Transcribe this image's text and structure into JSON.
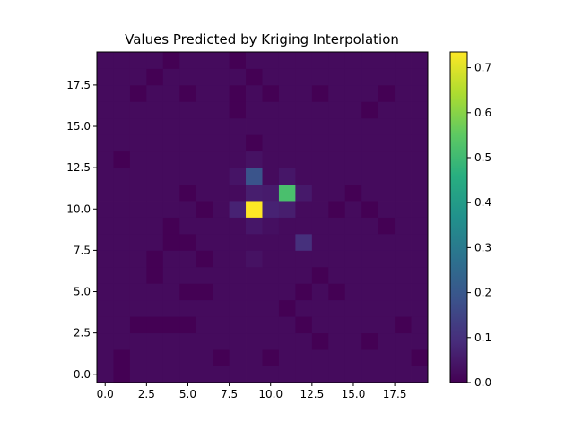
{
  "chart_data": {
    "type": "heatmap",
    "title": "Values Predicted by Kriging Interpolation",
    "xlabel": "",
    "ylabel": "",
    "origin": "lower",
    "nx": 20,
    "ny": 20,
    "xlim": [
      -0.5,
      19.5
    ],
    "ylim": [
      -0.5,
      19.5
    ],
    "x_ticks": [
      0.0,
      2.5,
      5.0,
      7.5,
      10.0,
      12.5,
      15.0,
      17.5
    ],
    "x_tick_labels": [
      "0.0",
      "2.5",
      "5.0",
      "7.5",
      "10.0",
      "12.5",
      "15.0",
      "17.5"
    ],
    "y_ticks": [
      0.0,
      2.5,
      5.0,
      7.5,
      10.0,
      12.5,
      15.0,
      17.5
    ],
    "y_tick_labels": [
      "0.0",
      "2.5",
      "5.0",
      "7.5",
      "10.0",
      "12.5",
      "15.0",
      "17.5"
    ],
    "colormap": "viridis",
    "background_value": 0.02,
    "colorbar": {
      "vmin": 0.0,
      "vmax": 0.735,
      "ticks": [
        0.0,
        0.1,
        0.2,
        0.3,
        0.4,
        0.5,
        0.6,
        0.7
      ],
      "tick_labels": [
        "0.0",
        "0.1",
        "0.2",
        "0.3",
        "0.4",
        "0.5",
        "0.6",
        "0.7"
      ]
    },
    "cells": [
      [
        9,
        10,
        0.735
      ],
      [
        11,
        11,
        0.52
      ],
      [
        9,
        12,
        0.19
      ],
      [
        12,
        8,
        0.1
      ],
      [
        8,
        10,
        0.07
      ],
      [
        10,
        10,
        0.07
      ],
      [
        10,
        11,
        0.055
      ],
      [
        11,
        10,
        0.06
      ],
      [
        9,
        11,
        0.06
      ],
      [
        12,
        11,
        0.05
      ],
      [
        11,
        12,
        0.045
      ],
      [
        8,
        12,
        0.04
      ],
      [
        9,
        9,
        0.045
      ],
      [
        9,
        13,
        0.035
      ],
      [
        9,
        7,
        0.035
      ],
      [
        10,
        9,
        0.03
      ],
      [
        1,
        0,
        0.0
      ],
      [
        1,
        1,
        0.0
      ],
      [
        7,
        1,
        0.0
      ],
      [
        10,
        1,
        0.0
      ],
      [
        19,
        1,
        0.0
      ],
      [
        13,
        2,
        0.0
      ],
      [
        16,
        2,
        0.0
      ],
      [
        2,
        3,
        0.0
      ],
      [
        3,
        3,
        0.0
      ],
      [
        4,
        3,
        0.0
      ],
      [
        5,
        3,
        0.0
      ],
      [
        12,
        3,
        0.0
      ],
      [
        18,
        3,
        0.0
      ],
      [
        11,
        4,
        0.0
      ],
      [
        5,
        5,
        0.0
      ],
      [
        6,
        5,
        0.0
      ],
      [
        12,
        5,
        0.0
      ],
      [
        14,
        5,
        0.0
      ],
      [
        3,
        6,
        0.0
      ],
      [
        13,
        6,
        0.0
      ],
      [
        3,
        7,
        0.0
      ],
      [
        6,
        7,
        0.0
      ],
      [
        4,
        8,
        0.0
      ],
      [
        5,
        8,
        0.0
      ],
      [
        4,
        9,
        0.0
      ],
      [
        17,
        9,
        0.0
      ],
      [
        6,
        10,
        0.0
      ],
      [
        14,
        10,
        0.0
      ],
      [
        16,
        10,
        0.0
      ],
      [
        5,
        11,
        0.0
      ],
      [
        15,
        11,
        0.0
      ],
      [
        1,
        13,
        0.0
      ],
      [
        9,
        14,
        0.0
      ],
      [
        10,
        17,
        0.0
      ],
      [
        16,
        16,
        0.0
      ],
      [
        2,
        17,
        0.0
      ],
      [
        5,
        17,
        0.0
      ],
      [
        8,
        17,
        0.0
      ],
      [
        8,
        16,
        0.0
      ],
      [
        13,
        17,
        0.0
      ],
      [
        17,
        17,
        0.0
      ],
      [
        3,
        18,
        0.0
      ],
      [
        9,
        18,
        0.0
      ],
      [
        4,
        19,
        0.0
      ],
      [
        8,
        19,
        0.0
      ]
    ]
  }
}
